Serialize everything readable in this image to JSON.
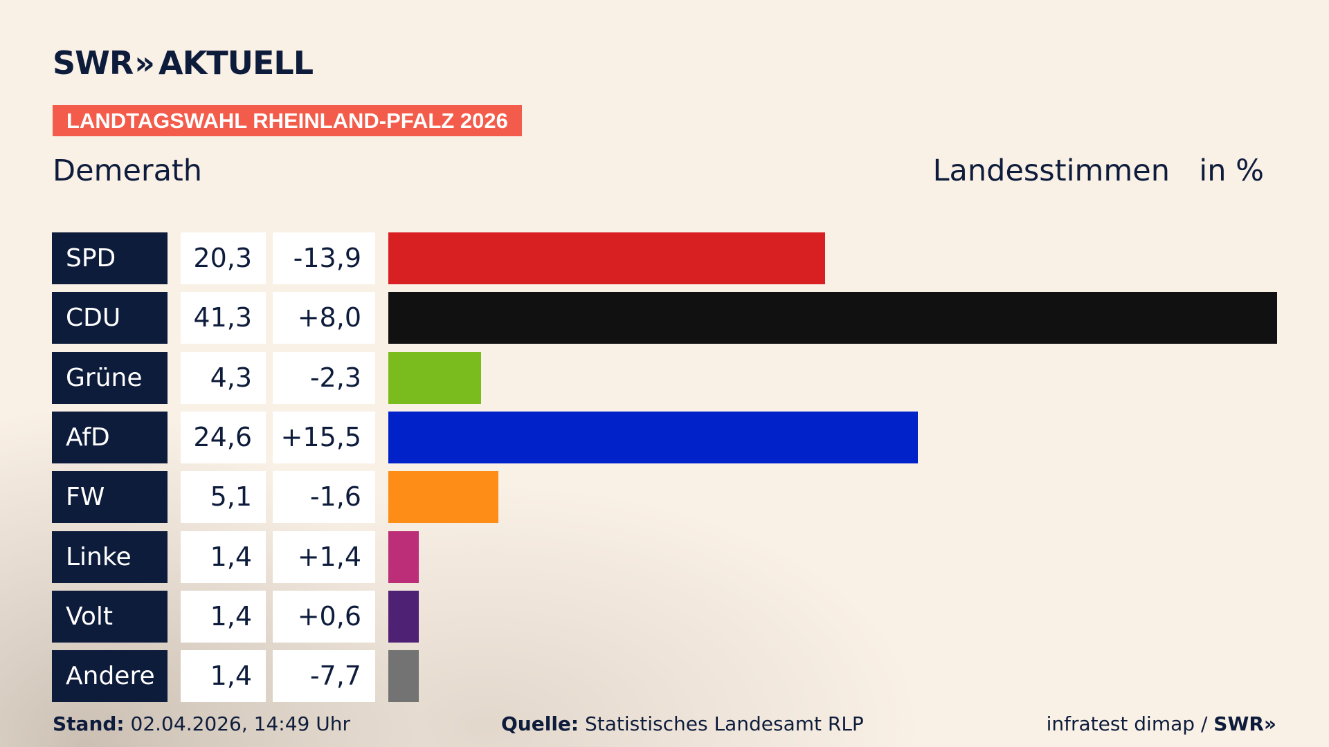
{
  "header": {
    "brand_name": "SWR",
    "brand_chevrons": "»",
    "brand_product": "AKTUELL",
    "election": "LANDTAGSWAHL RHEINLAND-PFALZ 2026",
    "place": "Demerath",
    "measure": "Landesstimmen",
    "unit": "in %"
  },
  "chart_data": {
    "type": "bar",
    "orientation": "horizontal",
    "categories": [
      "SPD",
      "CDU",
      "Grüne",
      "AfD",
      "FW",
      "Linke",
      "Volt",
      "Andere"
    ],
    "values": [
      20.3,
      41.3,
      4.3,
      24.6,
      5.1,
      1.4,
      1.4,
      1.4
    ],
    "value_labels": [
      "20,3",
      "41,3",
      "4,3",
      "24,6",
      "5,1",
      "1,4",
      "1,4",
      "1,4"
    ],
    "changes": [
      -13.9,
      8.0,
      -2.3,
      15.5,
      -1.6,
      1.4,
      0.6,
      -7.7
    ],
    "change_labels": [
      "-13,9",
      "+8,0",
      "-2,3",
      "+15,5",
      "-1,6",
      "+1,4",
      "+0,6",
      "-7,7"
    ],
    "colors": [
      "#d81f22",
      "#111111",
      "#7abc1e",
      "#0022c8",
      "#fd8d17",
      "#bd2e78",
      "#4f2174",
      "#737373"
    ],
    "title": "Demerath",
    "xlabel": "",
    "ylabel": "",
    "unit": "in %",
    "xlim": [
      0,
      41.3
    ],
    "grid": false,
    "legend": "none"
  },
  "footer": {
    "stand_label": "Stand:",
    "stand_value": "02.04.2026, 14:49 Uhr",
    "source_label": "Quelle:",
    "source_value": "Statistisches Landesamt RLP",
    "credit": "infratest dimap /",
    "credit_brand": "SWR»"
  }
}
